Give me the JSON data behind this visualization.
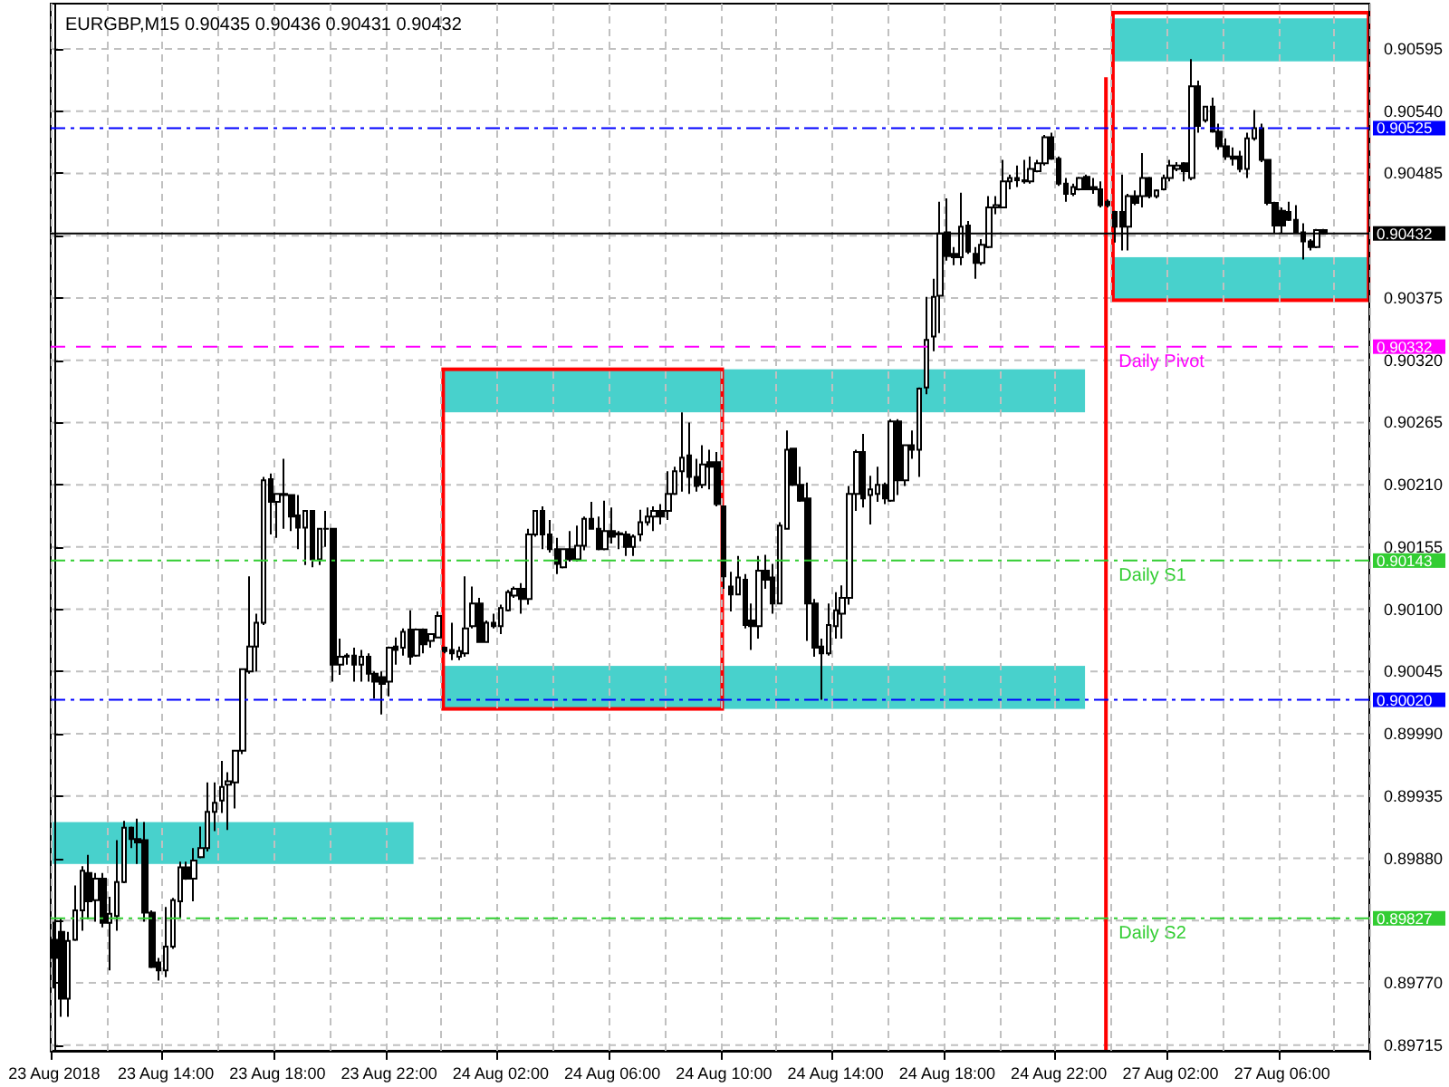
{
  "chart_data": {
    "type": "candlestick",
    "title": "EURGBP,M15 0.90435 0.90436 0.90431 0.90432",
    "color": "#000000",
    "categories": [
      "23 Aug 2018",
      null,
      null,
      null,
      null,
      null,
      null,
      null,
      null,
      null,
      null,
      null,
      null,
      null,
      null,
      null,
      "23 Aug 14:00",
      null,
      null,
      null,
      null,
      null,
      null,
      null,
      null,
      null,
      null,
      null,
      null,
      null,
      null,
      null,
      "23 Aug 18:00",
      null,
      null,
      null,
      null,
      null,
      null,
      null,
      null,
      null,
      null,
      null,
      null,
      null,
      null,
      null,
      "23 Aug 22:00",
      null,
      null,
      null,
      null,
      null,
      null,
      null,
      null,
      null,
      null,
      null,
      null,
      null,
      null,
      null,
      "24 Aug 02:00",
      null,
      null,
      null,
      null,
      null,
      null,
      null,
      null,
      null,
      null,
      null,
      null,
      null,
      null,
      null,
      "24 Aug 06:00",
      null,
      null,
      null,
      null,
      null,
      null,
      null,
      null,
      null,
      null,
      null,
      null,
      null,
      null,
      null,
      "24 Aug 10:00",
      null,
      null,
      null,
      null,
      null,
      null,
      null,
      null,
      null,
      null,
      null,
      null,
      null,
      null,
      null,
      "24 Aug 14:00",
      null,
      null,
      null,
      null,
      null,
      null,
      null,
      null,
      null,
      null,
      null,
      null,
      null,
      null,
      null,
      "24 Aug 18:00",
      null,
      null,
      null,
      null,
      null,
      null,
      null,
      null,
      null,
      null,
      null,
      null,
      null,
      null,
      null,
      "24 Aug 22:00",
      null,
      null,
      null,
      null,
      null,
      null,
      null,
      null,
      null,
      null,
      null,
      null,
      null,
      null,
      null,
      "27 Aug 02:00",
      null,
      null,
      null,
      null,
      null,
      null,
      null,
      null,
      null,
      null,
      null,
      null,
      null,
      null,
      null,
      "27 Aug 06:00",
      null,
      null,
      null,
      null,
      null,
      null,
      null,
      null,
      null,
      null,
      null,
      null
    ],
    "ohlc": [
      [
        0.89808,
        0.89824,
        0.89765,
        0.89792
      ],
      [
        0.89815,
        0.89827,
        0.8974,
        0.89756
      ],
      [
        0.89756,
        0.89815,
        0.8974,
        0.89807
      ],
      [
        0.89808,
        0.89856,
        0.89807,
        0.89834
      ],
      [
        0.89834,
        0.89873,
        0.89816,
        0.89869
      ],
      [
        0.89867,
        0.89883,
        0.89826,
        0.89842
      ],
      [
        0.89843,
        0.89867,
        0.89824,
        0.89862
      ],
      [
        0.89862,
        0.89867,
        0.89819,
        0.89823
      ],
      [
        0.89823,
        0.89846,
        0.89781,
        0.89831
      ],
      [
        0.89829,
        0.89896,
        0.89816,
        0.89859
      ],
      [
        0.89859,
        0.89913,
        0.89858,
        0.89907
      ],
      [
        0.89907,
        0.89908,
        0.89889,
        0.89897
      ],
      [
        0.89897,
        0.89915,
        0.89875,
        0.89894
      ],
      [
        0.89896,
        0.89912,
        0.89824,
        0.89832
      ],
      [
        0.89832,
        0.89834,
        0.89783,
        0.89784
      ],
      [
        0.89788,
        0.89792,
        0.89772,
        0.89781
      ],
      [
        0.89781,
        0.89837,
        0.89775,
        0.89802
      ],
      [
        0.89802,
        0.89845,
        0.898,
        0.89843
      ],
      [
        0.89842,
        0.89877,
        0.89827,
        0.89872
      ],
      [
        0.89872,
        0.89877,
        0.89861,
        0.89862
      ],
      [
        0.89862,
        0.89889,
        0.89842,
        0.89878
      ],
      [
        0.89881,
        0.89908,
        0.8988,
        0.89889
      ],
      [
        0.89889,
        0.89947,
        0.89886,
        0.89921
      ],
      [
        0.89921,
        0.89947,
        0.89904,
        0.89929
      ],
      [
        0.89931,
        0.89966,
        0.8992,
        0.89943
      ],
      [
        0.89945,
        0.89956,
        0.89905,
        0.89948
      ],
      [
        0.89947,
        0.89975,
        0.89924,
        0.89975
      ],
      [
        0.89975,
        0.90047,
        0.89972,
        0.90047
      ],
      [
        0.90045,
        0.90129,
        0.90043,
        0.90067
      ],
      [
        0.90067,
        0.90096,
        0.90045,
        0.90088
      ],
      [
        0.90088,
        0.90217,
        0.90086,
        0.90214
      ],
      [
        0.90215,
        0.9022,
        0.90166,
        0.90195
      ],
      [
        0.90195,
        0.90202,
        0.90163,
        0.90202
      ],
      [
        0.90202,
        0.90233,
        0.90171,
        0.90201
      ],
      [
        0.90201,
        0.90201,
        0.90169,
        0.90182
      ],
      [
        0.90183,
        0.90201,
        0.90153,
        0.90172
      ],
      [
        0.90172,
        0.90187,
        0.90139,
        0.90187
      ],
      [
        0.90187,
        0.90187,
        0.90137,
        0.90144
      ],
      [
        0.90144,
        0.90171,
        0.90139,
        0.90171
      ],
      [
        0.90171,
        0.90187,
        0.90155,
        0.90171
      ],
      [
        0.90171,
        0.90171,
        0.90036,
        0.90051
      ],
      [
        0.90051,
        0.90074,
        0.90042,
        0.90058
      ],
      [
        0.90058,
        0.90061,
        0.90051,
        0.90059
      ],
      [
        0.90059,
        0.90066,
        0.90036,
        0.90051
      ],
      [
        0.90051,
        0.90064,
        0.90036,
        0.90058
      ],
      [
        0.90058,
        0.90061,
        0.90036,
        0.90043
      ],
      [
        0.90043,
        0.90045,
        0.90021,
        0.90036
      ],
      [
        0.9004,
        0.90045,
        0.90007,
        0.90034
      ],
      [
        0.90036,
        0.90067,
        0.90023,
        0.90066
      ],
      [
        0.90067,
        0.90075,
        0.90051,
        0.90064
      ],
      [
        0.90066,
        0.90083,
        0.90059,
        0.9008
      ],
      [
        0.90082,
        0.90099,
        0.90051,
        0.90058
      ],
      [
        0.90059,
        0.90083,
        0.90058,
        0.90082
      ],
      [
        0.90082,
        0.90083,
        0.90061,
        0.90069
      ],
      [
        0.90072,
        0.90078,
        0.90066,
        0.90078
      ],
      [
        0.90075,
        0.90098,
        0.90075,
        0.90094
      ],
      [
        0.90066,
        0.90067,
        0.90061,
        0.90063
      ],
      [
        0.90064,
        0.90088,
        0.90055,
        0.90061
      ],
      [
        0.90058,
        0.90067,
        0.90055,
        0.90063
      ],
      [
        0.90061,
        0.90129,
        0.90058,
        0.90083
      ],
      [
        0.90085,
        0.9012,
        0.90083,
        0.90105
      ],
      [
        0.90105,
        0.9011,
        0.90071,
        0.90071
      ],
      [
        0.90071,
        0.9009,
        0.90071,
        0.90088
      ],
      [
        0.90088,
        0.90096,
        0.90083,
        0.90085
      ],
      [
        0.90085,
        0.90104,
        0.90078,
        0.90101
      ],
      [
        0.90099,
        0.90117,
        0.90098,
        0.90115
      ],
      [
        0.90112,
        0.9012,
        0.9011,
        0.90118
      ],
      [
        0.90118,
        0.90123,
        0.90096,
        0.90109
      ],
      [
        0.90109,
        0.90171,
        0.90104,
        0.90166
      ],
      [
        0.90166,
        0.90187,
        0.90164,
        0.90187
      ],
      [
        0.90187,
        0.90191,
        0.90153,
        0.90166
      ],
      [
        0.90166,
        0.90179,
        0.9015,
        0.90153
      ],
      [
        0.90153,
        0.90163,
        0.90131,
        0.9014
      ],
      [
        0.90137,
        0.90153,
        0.90136,
        0.90153
      ],
      [
        0.90153,
        0.90169,
        0.90142,
        0.90144
      ],
      [
        0.90144,
        0.90174,
        0.90142,
        0.90156
      ],
      [
        0.90156,
        0.90182,
        0.90152,
        0.9018
      ],
      [
        0.9018,
        0.90195,
        0.90171,
        0.90171
      ],
      [
        0.90171,
        0.90182,
        0.90152,
        0.90153
      ],
      [
        0.90153,
        0.90196,
        0.90152,
        0.90169
      ],
      [
        0.90169,
        0.9019,
        0.90158,
        0.90164
      ],
      [
        0.90167,
        0.90169,
        0.90153,
        0.90166
      ],
      [
        0.90166,
        0.90169,
        0.90147,
        0.90155
      ],
      [
        0.90155,
        0.90166,
        0.90147,
        0.90164
      ],
      [
        0.90166,
        0.90188,
        0.9016,
        0.90177
      ],
      [
        0.90177,
        0.9019,
        0.90174,
        0.90182
      ],
      [
        0.90182,
        0.90191,
        0.90169,
        0.90187
      ],
      [
        0.90187,
        0.90193,
        0.90175,
        0.90182
      ],
      [
        0.90187,
        0.90222,
        0.90179,
        0.90202
      ],
      [
        0.90202,
        0.90226,
        0.90201,
        0.90222
      ],
      [
        0.90222,
        0.90274,
        0.90204,
        0.90234
      ],
      [
        0.90236,
        0.90265,
        0.90202,
        0.90217
      ],
      [
        0.90217,
        0.90233,
        0.90204,
        0.90209
      ],
      [
        0.9021,
        0.90245,
        0.90207,
        0.90228
      ],
      [
        0.9023,
        0.90241,
        0.90206,
        0.90226
      ],
      [
        0.9023,
        0.90239,
        0.90191,
        0.90193
      ],
      [
        0.90191,
        0.90191,
        0.90118,
        0.90129
      ],
      [
        0.9012,
        0.90133,
        0.90098,
        0.90113
      ],
      [
        0.90113,
        0.90147,
        0.90113,
        0.90128
      ],
      [
        0.90126,
        0.90131,
        0.90083,
        0.90086
      ],
      [
        0.9009,
        0.90105,
        0.90064,
        0.90085
      ],
      [
        0.90085,
        0.90147,
        0.90074,
        0.90134
      ],
      [
        0.90134,
        0.90148,
        0.90118,
        0.90126
      ],
      [
        0.90128,
        0.9014,
        0.90096,
        0.90105
      ],
      [
        0.90105,
        0.90177,
        0.90105,
        0.90174
      ],
      [
        0.90171,
        0.90258,
        0.90171,
        0.90241
      ],
      [
        0.90242,
        0.90242,
        0.90209,
        0.9021
      ],
      [
        0.9021,
        0.90226,
        0.90195,
        0.90196
      ],
      [
        0.90198,
        0.90212,
        0.90072,
        0.90105
      ],
      [
        0.90105,
        0.90109,
        0.90058,
        0.90066
      ],
      [
        0.90067,
        0.90074,
        0.9002,
        0.90061
      ],
      [
        0.90061,
        0.90105,
        0.90059,
        0.90086
      ],
      [
        0.90085,
        0.90115,
        0.90074,
        0.90099
      ],
      [
        0.90096,
        0.90121,
        0.90074,
        0.9011
      ],
      [
        0.9011,
        0.90209,
        0.90104,
        0.90202
      ],
      [
        0.90202,
        0.90241,
        0.90187,
        0.90239
      ],
      [
        0.90239,
        0.90255,
        0.9019,
        0.90198
      ],
      [
        0.90201,
        0.90218,
        0.90175,
        0.90206
      ],
      [
        0.90202,
        0.90226,
        0.90195,
        0.9021
      ],
      [
        0.9021,
        0.90212,
        0.90193,
        0.90198
      ],
      [
        0.90196,
        0.90268,
        0.90195,
        0.90266
      ],
      [
        0.90266,
        0.90268,
        0.90201,
        0.90214
      ],
      [
        0.90214,
        0.90245,
        0.90209,
        0.90245
      ],
      [
        0.90245,
        0.90258,
        0.90233,
        0.90241
      ],
      [
        0.90241,
        0.90296,
        0.90217,
        0.90295
      ],
      [
        0.90296,
        0.90376,
        0.9029,
        0.90338
      ],
      [
        0.90341,
        0.90392,
        0.90328,
        0.90376
      ],
      [
        0.90377,
        0.9046,
        0.90344,
        0.90432
      ],
      [
        0.90433,
        0.90463,
        0.90408,
        0.90412
      ],
      [
        0.90414,
        0.9042,
        0.90404,
        0.90411
      ],
      [
        0.90411,
        0.90468,
        0.90404,
        0.90438
      ],
      [
        0.90439,
        0.90443,
        0.90414,
        0.90416
      ],
      [
        0.90414,
        0.9042,
        0.90392,
        0.90406
      ],
      [
        0.90406,
        0.90427,
        0.90404,
        0.90422
      ],
      [
        0.9042,
        0.90465,
        0.90419,
        0.90455
      ],
      [
        0.90455,
        0.90465,
        0.90449,
        0.90457
      ],
      [
        0.90455,
        0.90497,
        0.90455,
        0.90478
      ],
      [
        0.90478,
        0.90484,
        0.90471,
        0.90481
      ],
      [
        0.90481,
        0.90492,
        0.90473,
        0.90479
      ],
      [
        0.90478,
        0.90497,
        0.90476,
        0.90479
      ],
      [
        0.90478,
        0.905,
        0.90476,
        0.90489
      ],
      [
        0.90487,
        0.90497,
        0.90486,
        0.90494
      ],
      [
        0.90494,
        0.90519,
        0.90492,
        0.90517
      ],
      [
        0.90517,
        0.90521,
        0.90497,
        0.90498
      ],
      [
        0.90498,
        0.905,
        0.90474,
        0.90476
      ],
      [
        0.90476,
        0.90481,
        0.9046,
        0.90467
      ],
      [
        0.90467,
        0.90476,
        0.90465,
        0.90473
      ],
      [
        0.90471,
        0.90482,
        0.9047,
        0.90481
      ],
      [
        0.90482,
        0.90484,
        0.90471,
        0.90471
      ],
      [
        0.90473,
        0.90481,
        0.90467,
        0.90471
      ],
      [
        0.90471,
        0.90478,
        0.90455,
        0.90457
      ],
      [
        0.9046,
        0.90462,
        0.90455,
        0.90457
      ],
      [
        0.90451,
        0.90452,
        0.90424,
        0.90438
      ],
      [
        0.90451,
        0.90484,
        0.90417,
        0.90438
      ],
      [
        0.90438,
        0.90467,
        0.90417,
        0.90465
      ],
      [
        0.90465,
        0.9047,
        0.90457,
        0.90459
      ],
      [
        0.90465,
        0.90503,
        0.90455,
        0.90481
      ],
      [
        0.90481,
        0.90482,
        0.90463,
        0.90465
      ],
      [
        0.90465,
        0.90471,
        0.90463,
        0.9047
      ],
      [
        0.90471,
        0.90484,
        0.9047,
        0.90481
      ],
      [
        0.90481,
        0.90497,
        0.90478,
        0.90492
      ],
      [
        0.90489,
        0.90495,
        0.90487,
        0.90492
      ],
      [
        0.90494,
        0.90495,
        0.90478,
        0.90487
      ],
      [
        0.90481,
        0.90586,
        0.90479,
        0.90562
      ],
      [
        0.90562,
        0.90567,
        0.90521,
        0.90527
      ],
      [
        0.90532,
        0.90544,
        0.9053,
        0.90544
      ],
      [
        0.90544,
        0.90552,
        0.90521,
        0.90522
      ],
      [
        0.90522,
        0.90529,
        0.90506,
        0.90509
      ],
      [
        0.90509,
        0.90516,
        0.90497,
        0.905
      ],
      [
        0.905,
        0.90508,
        0.90492,
        0.90498
      ],
      [
        0.905,
        0.90505,
        0.90486,
        0.90489
      ],
      [
        0.90489,
        0.90521,
        0.90481,
        0.90516
      ],
      [
        0.90516,
        0.90541,
        0.90514,
        0.90525
      ],
      [
        0.90525,
        0.90529,
        0.90495,
        0.90497
      ],
      [
        0.90497,
        0.90497,
        0.90457,
        0.90459
      ],
      [
        0.90459,
        0.9046,
        0.90432,
        0.90439
      ],
      [
        0.90452,
        0.90455,
        0.90432,
        0.90439
      ],
      [
        0.90451,
        0.9046,
        0.90443,
        0.90444
      ],
      [
        0.90444,
        0.90457,
        0.90432,
        0.90433
      ],
      [
        0.90433,
        0.90441,
        0.90409,
        0.90425
      ],
      [
        0.90425,
        0.90427,
        0.90417,
        0.9042
      ],
      [
        0.9042,
        0.90436,
        0.90419,
        0.90435
      ],
      [
        0.90435,
        0.90436,
        0.90431,
        0.90432
      ],
      null,
      null,
      null,
      null,
      null,
      null
    ],
    "ylim": [
      0.8971,
      0.90635
    ],
    "yticks": [
      0.89715,
      {
        "value": 0.8977,
        "label": "0.89770"
      },
      {
        "value": 0.89825,
        "label": null
      },
      {
        "value": 0.8988,
        "label": "0.89880"
      },
      0.89935,
      {
        "value": 0.8999,
        "label": "0.89990"
      },
      0.90045,
      {
        "value": 0.901,
        "label": "0.90100"
      },
      0.90155,
      {
        "value": 0.9021,
        "label": "0.90210"
      },
      0.90265,
      {
        "value": 0.9032,
        "label": "0.90320"
      },
      0.90375,
      {
        "value": 0.9043,
        "label": null
      },
      0.90485,
      {
        "value": 0.9054,
        "label": "0.90540"
      },
      0.90595
    ],
    "grid": true,
    "annotations": [
      {
        "text": "Daily Pivot",
        "y": 0.90332
      },
      {
        "text": "Daily S1",
        "y": 0.90143
      },
      {
        "text": "Daily S2",
        "y": 0.89827
      }
    ],
    "ref_lines": [
      {
        "axis": "y",
        "value": 0.90525,
        "color": "#0000ff",
        "line_style": "dashdot",
        "label": "0.90525"
      },
      {
        "axis": "y",
        "value": 0.90432,
        "color": "#000000",
        "line_style": "solid",
        "label": "0.90432"
      },
      {
        "axis": "y",
        "value": 0.90332,
        "color": "#ff00ff",
        "line_style": "dashed",
        "label": "0.90332"
      },
      {
        "axis": "y",
        "value": 0.90143,
        "color": "#32cd32",
        "line_style": "dashdot",
        "label": "0.90143"
      },
      {
        "axis": "y",
        "value": 0.9002,
        "color": "#0000ff",
        "line_style": "dashdot",
        "label": "0.90020"
      },
      {
        "axis": "y",
        "value": 0.89827,
        "color": "#32cd32",
        "line_style": "dashdot",
        "label": "0.89827"
      }
    ]
  }
}
